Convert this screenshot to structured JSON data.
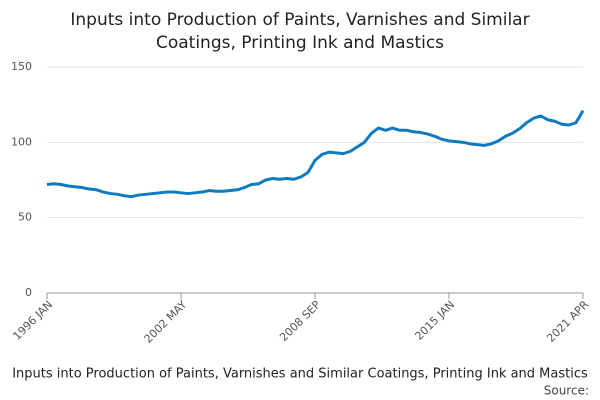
{
  "chart_data": {
    "type": "line",
    "title": [
      "Inputs into Production of Paints, Varnishes and Similar",
      "Coatings, Printing Ink and Mastics"
    ],
    "caption": "Inputs into Production of Paints, Varnishes and Similar Coatings, Printing Ink and Mastics",
    "source": "Source:",
    "categories": [
      "1996 JAN",
      null,
      null,
      null,
      null,
      null,
      null,
      null,
      null,
      null,
      null,
      null,
      null,
      null,
      null,
      null,
      null,
      null,
      null,
      "2002 MAY",
      null,
      null,
      null,
      null,
      null,
      null,
      null,
      null,
      null,
      null,
      null,
      null,
      null,
      null,
      null,
      null,
      null,
      null,
      "2008 SEP",
      null,
      null,
      null,
      null,
      null,
      null,
      null,
      null,
      null,
      null,
      null,
      null,
      null,
      null,
      null,
      null,
      null,
      null,
      "2015 JAN",
      null,
      null,
      null,
      null,
      null,
      null,
      null,
      null,
      null,
      null,
      null,
      null,
      null,
      null,
      null,
      null,
      null,
      null,
      "2021 APR"
    ],
    "series": [
      {
        "name": "Inputs into Production of Paints, Varnishes and Similar Coatings, Printing Ink and Mastics",
        "color": "#0f7bbf",
        "values": [
          72,
          72.5,
          72,
          71,
          70.5,
          70,
          69,
          68.5,
          67,
          66,
          65.5,
          64.5,
          64,
          65,
          65.5,
          66,
          66.5,
          67,
          67,
          66.5,
          66,
          66.5,
          67,
          68,
          67.5,
          67.5,
          68,
          68.5,
          70,
          72,
          72.5,
          75,
          76,
          75.5,
          76,
          75.5,
          77,
          80,
          88,
          92,
          93.5,
          93,
          92.5,
          94,
          97,
          100,
          106,
          109.5,
          108,
          109.5,
          108,
          108,
          107,
          106.5,
          105.5,
          104,
          102,
          101,
          100.5,
          100,
          99,
          98.5,
          98,
          99,
          101,
          104,
          106,
          109,
          113,
          116,
          117.5,
          115,
          114,
          112,
          111.5,
          113,
          121
        ]
      }
    ],
    "ylim": [
      0,
      150
    ],
    "yticks": [
      0,
      50,
      100,
      150
    ],
    "grid": true
  }
}
